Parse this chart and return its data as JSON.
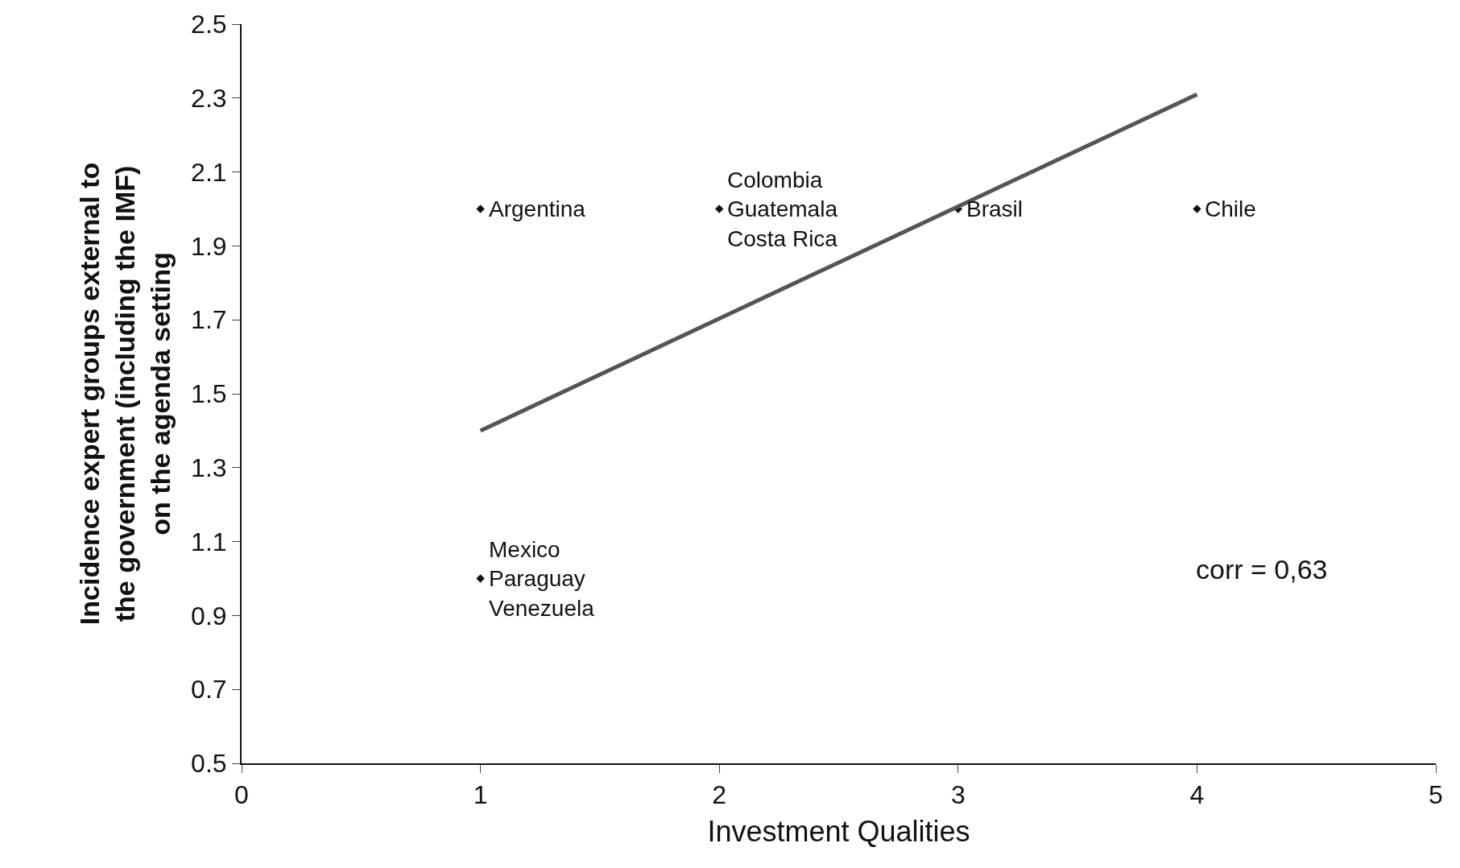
{
  "chart_data": {
    "type": "scatter",
    "xlabel": "Investment Qualities",
    "ylabel": "Incidence expert groups external to\nthe government (including the IMF)\non the agenda setting",
    "series": [
      {
        "color": "#111111",
        "x": [
          1,
          2,
          3,
          4,
          1
        ],
        "values": [
          2.0,
          2.0,
          2.0,
          2.0,
          1.0
        ],
        "marker": "diamond"
      },
      {
        "type": "line",
        "color": "#555555",
        "x": [
          1,
          4
        ],
        "values": [
          1.4,
          2.31
        ],
        "line_style": "solid"
      }
    ],
    "annotations": [
      {
        "text": "Argentina",
        "x": 1,
        "y": 2.0
      },
      {
        "text": "Colombia\nGuatemala\nCosta Rica",
        "x": 2,
        "y": 2.0
      },
      {
        "text": "Brasil",
        "x": 3,
        "y": 2.0
      },
      {
        "text": "Chile",
        "x": 4,
        "y": 2.0
      },
      {
        "text": "Mexico\nParaguay\nVenezuela",
        "x": 1,
        "y": 1.0
      },
      "corr = 0,63"
    ],
    "xlim": [
      0,
      5
    ],
    "xticks": [
      0,
      1,
      2,
      3,
      4,
      5
    ],
    "ylim": [
      0.5,
      2.5
    ],
    "yticks": [
      0.5,
      0.7,
      0.9,
      1.1,
      1.3,
      1.5,
      1.7,
      1.9,
      2.1,
      2.3,
      2.5
    ]
  }
}
